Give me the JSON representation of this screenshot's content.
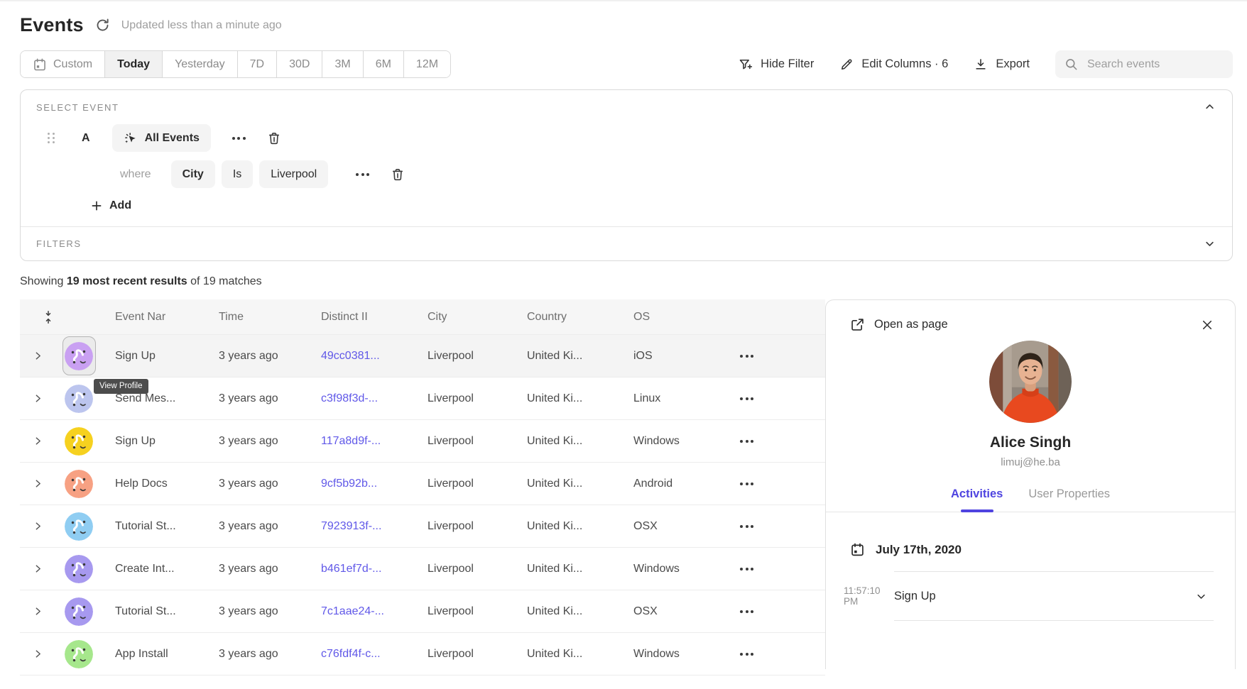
{
  "page": {
    "title": "Events",
    "updated": "Updated less than a minute ago"
  },
  "toolbar": {
    "date_ranges": [
      "Custom",
      "Today",
      "Yesterday",
      "7D",
      "30D",
      "3M",
      "6M",
      "12M"
    ],
    "selected_range": "Today",
    "hide_filter_label": "Hide Filter",
    "edit_columns_label": "Edit Columns · 6",
    "export_label": "Export",
    "search_placeholder": "Search events"
  },
  "query_builder": {
    "section_label": "SELECT EVENT",
    "event_letter": "A",
    "event_chip": "All Events",
    "where_label": "where",
    "property_chip": "City",
    "operator_chip": "Is",
    "value_chip": "Liverpool",
    "add_label": "Add",
    "filters_label": "FILTERS"
  },
  "results": {
    "prefix": "Showing ",
    "bold": "19 most recent results",
    "suffix": " of 19 matches"
  },
  "table": {
    "headers": [
      "Event Nar",
      "Time",
      "Distinct II",
      "City",
      "Country",
      "OS"
    ],
    "tooltip": "View Profile",
    "rows": [
      {
        "event": "Sign Up",
        "time": "3 years ago",
        "distinct_id": "49cc0381...",
        "city": "Liverpool",
        "country": "United Ki...",
        "os": "iOS",
        "avatar_color": "#c9a0f2",
        "highlighted": true
      },
      {
        "event": "Send Mes...",
        "time": "3 years ago",
        "distinct_id": "c3f98f3d-...",
        "city": "Liverpool",
        "country": "United Ki...",
        "os": "Linux",
        "avatar_color": "#bcc5ee",
        "highlighted": false
      },
      {
        "event": "Sign Up",
        "time": "3 years ago",
        "distinct_id": "117a8d9f-...",
        "city": "Liverpool",
        "country": "United Ki...",
        "os": "Windows",
        "avatar_color": "#f6d11f",
        "highlighted": false
      },
      {
        "event": "Help Docs",
        "time": "3 years ago",
        "distinct_id": "9cf5b92b...",
        "city": "Liverpool",
        "country": "United Ki...",
        "os": "Android",
        "avatar_color": "#f7a183",
        "highlighted": false
      },
      {
        "event": "Tutorial St...",
        "time": "3 years ago",
        "distinct_id": "7923913f-...",
        "city": "Liverpool",
        "country": "United Ki...",
        "os": "OSX",
        "avatar_color": "#8fcdf2",
        "highlighted": false
      },
      {
        "event": "Create Int...",
        "time": "3 years ago",
        "distinct_id": "b461ef7d-...",
        "city": "Liverpool",
        "country": "United Ki...",
        "os": "Windows",
        "avatar_color": "#a799ef",
        "highlighted": false
      },
      {
        "event": "Tutorial St...",
        "time": "3 years ago",
        "distinct_id": "7c1aae24-...",
        "city": "Liverpool",
        "country": "United Ki...",
        "os": "OSX",
        "avatar_color": "#a799ef",
        "highlighted": false
      },
      {
        "event": "App Install",
        "time": "3 years ago",
        "distinct_id": "c76fdf4f-c...",
        "city": "Liverpool",
        "country": "United Ki...",
        "os": "Windows",
        "avatar_color": "#a6e78c",
        "highlighted": false
      }
    ]
  },
  "profile_panel": {
    "open_as_page": "Open as page",
    "name": "Alice Singh",
    "email": "limuj@he.ba",
    "tabs": [
      "Activities",
      "User Properties"
    ],
    "active_tab": "Activities",
    "date": "July 17th, 2020",
    "activity_time": "11:57:10 PM",
    "activity_event": "Sign Up"
  },
  "colors": {
    "accent": "#4f44e0",
    "link": "#6058e8",
    "row_highlight": "#f4f4f4"
  }
}
